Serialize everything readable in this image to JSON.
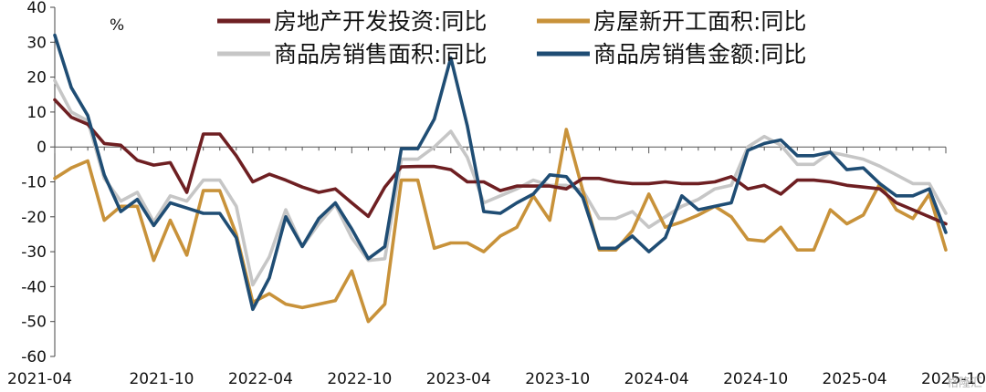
{
  "chart_data": {
    "type": "line",
    "unit": "%",
    "ylim": [
      -60,
      40
    ],
    "y_ticks": [
      40,
      30,
      20,
      10,
      0,
      -10,
      -20,
      -30,
      -40,
      -50,
      -60
    ],
    "x_ticks": [
      {
        "i": 0,
        "label": "2021-04"
      },
      {
        "i": 6,
        "label": "2021-10"
      },
      {
        "i": 12,
        "label": "2022-04"
      },
      {
        "i": 18,
        "label": "2022-10"
      },
      {
        "i": 24,
        "label": "2023-04"
      },
      {
        "i": 30,
        "label": "2023-10"
      },
      {
        "i": 36,
        "label": "2024-04"
      },
      {
        "i": 42,
        "label": "2024-10"
      },
      {
        "i": 48,
        "label": "2025-04"
      },
      {
        "i": 54,
        "label": "2025-10"
      }
    ],
    "x_start": "2021-04",
    "x_end": "2025-10",
    "series": [
      {
        "name": "房地产开发投资:同比",
        "color": "#6e1f22",
        "values": [
          13.5,
          8.5,
          6.5,
          1.0,
          0.5,
          -3.8,
          -5.2,
          -4.5,
          -13.0,
          3.7,
          3.7,
          -2.5,
          -10.0,
          -7.8,
          -9.5,
          -11.5,
          -13.0,
          -12.0,
          -16.0,
          -19.9,
          -11.5,
          -5.7,
          -5.6,
          -5.6,
          -6.5,
          -10.0,
          -10.0,
          -12.5,
          -11.2,
          -11.2,
          -11.2,
          -12.0,
          -9.0,
          -9.0,
          -10.0,
          -10.5,
          -10.5,
          -10.0,
          -10.5,
          -10.5,
          -10.0,
          -8.5,
          -12.0,
          -11.0,
          -13.5,
          -9.5,
          -9.5,
          -10.0,
          -11.0,
          -11.5,
          -12.0,
          -16.0,
          -18.0,
          -20.0,
          -22.0
        ]
      },
      {
        "name": "房屋新开工面积:同比",
        "color": "#c8923a",
        "values": [
          -9.0,
          -6.0,
          -4.0,
          -21.0,
          -17.0,
          -17.0,
          -32.5,
          -21.0,
          -31.0,
          -12.5,
          -12.5,
          -25.0,
          -44.5,
          -42.0,
          -45.0,
          -46.0,
          -45.0,
          -44.0,
          -35.5,
          -50.0,
          -45.0,
          -9.5,
          -9.5,
          -29.0,
          -27.5,
          -27.5,
          -30.0,
          -25.5,
          -23.0,
          -14.0,
          -21.0,
          5.0,
          -12.5,
          -29.5,
          -29.5,
          -24.0,
          -13.5,
          -23.0,
          -21.5,
          -19.5,
          -17.0,
          -20.0,
          -26.5,
          -27.0,
          -23.0,
          -29.5,
          -29.5,
          -18.0,
          -22.0,
          -19.5,
          -10.5,
          -18.0,
          -20.5,
          -13.5,
          -29.5
        ]
      },
      {
        "name": "商品房销售面积:同比",
        "color": "#c6c6c6",
        "values": [
          19.0,
          10.0,
          7.5,
          -9.0,
          -15.5,
          -13.0,
          -21.5,
          -14.0,
          -15.5,
          -9.5,
          -9.5,
          -17.0,
          -39.5,
          -31.5,
          -18.0,
          -28.5,
          -22.0,
          -16.5,
          -26.0,
          -32.5,
          -32.0,
          -3.5,
          -3.5,
          0.0,
          4.5,
          -3.0,
          -16.0,
          -14.0,
          -12.0,
          -9.5,
          -11.0,
          -11.0,
          -12.5,
          -20.5,
          -20.5,
          -18.5,
          -23.0,
          -20.0,
          -17.0,
          -15.0,
          -12.0,
          -11.0,
          0.0,
          3.0,
          0.5,
          -5.0,
          -5.0,
          -1.5,
          -2.5,
          -3.5,
          -5.5,
          -8.0,
          -10.5,
          -10.5,
          -19.0
        ]
      },
      {
        "name": "商品房销售金额:同比",
        "color": "#1f4d74",
        "values": [
          32.0,
          17.0,
          9.0,
          -8.0,
          -18.5,
          -15.0,
          -22.5,
          -16.0,
          -17.5,
          -19.0,
          -19.0,
          -26.0,
          -46.5,
          -37.5,
          -20.0,
          -28.5,
          -20.5,
          -16.0,
          -23.5,
          -32.0,
          -28.5,
          -0.5,
          -0.5,
          8.0,
          25.5,
          6.0,
          -18.5,
          -19.0,
          -16.0,
          -13.5,
          -8.0,
          -8.5,
          -14.5,
          -29.0,
          -29.0,
          -25.5,
          -30.0,
          -26.0,
          -14.0,
          -18.0,
          -17.0,
          -16.0,
          -1.0,
          1.0,
          2.0,
          -2.5,
          -2.5,
          -1.5,
          -6.5,
          -6.0,
          -10.5,
          -14.0,
          -14.0,
          -12.0,
          -24.5
        ]
      }
    ]
  },
  "watermark": "格隆汇"
}
